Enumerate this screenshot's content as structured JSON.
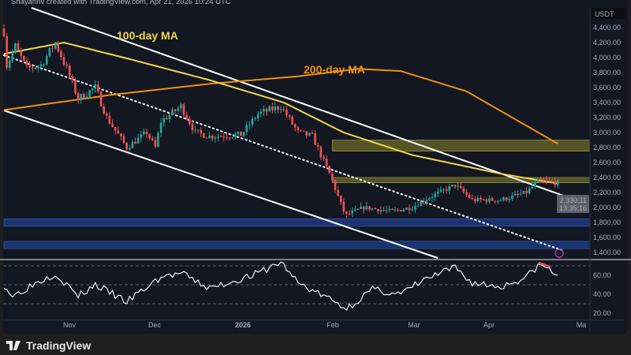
{
  "header": {
    "credit": "Shayannv created with TradingView.com, Apr 21, 2026 10:24 UTC"
  },
  "footer": {
    "brand": "TradingView"
  },
  "colors": {
    "background": "#131722",
    "up": "#26a69a",
    "down": "#ef5350",
    "ma100": "#f0d84a",
    "ma200": "#f0900f",
    "zone_yellow": "#6b6a2a",
    "zone_blue": "#1f3f8a",
    "channel": "#ffffff",
    "rsi": "#ffffff"
  },
  "chart_data": {
    "type": "candlestick",
    "currency": "USDT",
    "y_ticks": [
      "4,400.00",
      "4,200.00",
      "4,000.00",
      "3,800.00",
      "3,600.00",
      "3,400.00",
      "3,200.00",
      "3,000.00",
      "2,800.00",
      "2,600.00",
      "2,400.00",
      "2,200.00",
      "2,000.00",
      "1,800.00",
      "1,600.00",
      "1,400.00"
    ],
    "ylim": [
      1300,
      4550
    ],
    "x_ticks": [
      "Nov",
      "Dec",
      "2026",
      "Feb",
      "Mar",
      "Apr",
      "Ma"
    ],
    "x_range": [
      "2025-10-09",
      "2026-05-03"
    ],
    "last_price": "2,330.11",
    "countdown": "13:35:16",
    "price_keyframes": [
      [
        "2025-10-09",
        4350
      ],
      [
        "2025-10-10",
        3900
      ],
      [
        "2025-10-13",
        4150
      ],
      [
        "2025-10-17",
        3850
      ],
      [
        "2025-10-22",
        3900
      ],
      [
        "2025-10-27",
        4200
      ],
      [
        "2025-10-31",
        3850
      ],
      [
        "2025-11-04",
        3450
      ],
      [
        "2025-11-10",
        3600
      ],
      [
        "2025-11-14",
        3200
      ],
      [
        "2025-11-21",
        2800
      ],
      [
        "2025-11-28",
        3000
      ],
      [
        "2025-12-01",
        2800
      ],
      [
        "2025-12-03",
        3150
      ],
      [
        "2025-12-10",
        3350
      ],
      [
        "2025-12-15",
        3000
      ],
      [
        "2025-12-20",
        2950
      ],
      [
        "2025-12-31",
        2970
      ],
      [
        "2026-01-06",
        3250
      ],
      [
        "2026-01-14",
        3350
      ],
      [
        "2026-01-20",
        3000
      ],
      [
        "2026-01-25",
        2950
      ],
      [
        "2026-01-31",
        2450
      ],
      [
        "2026-02-05",
        1950
      ],
      [
        "2026-02-06",
        1900
      ],
      [
        "2026-02-12",
        2000
      ],
      [
        "2026-02-22",
        1950
      ],
      [
        "2026-03-01",
        2000
      ],
      [
        "2026-03-05",
        2100
      ],
      [
        "2026-03-16",
        2300
      ],
      [
        "2026-03-22",
        2100
      ],
      [
        "2026-04-01",
        2100
      ],
      [
        "2026-04-10",
        2200
      ],
      [
        "2026-04-14",
        2350
      ],
      [
        "2026-04-21",
        2330
      ]
    ],
    "ma100": {
      "label": "100-day MA",
      "keyframes": [
        [
          "2025-10-09",
          4050
        ],
        [
          "2025-10-30",
          4200
        ],
        [
          "2025-11-20",
          4000
        ],
        [
          "2025-12-20",
          3700
        ],
        [
          "2026-01-15",
          3400
        ],
        [
          "2026-02-05",
          3000
        ],
        [
          "2026-03-01",
          2700
        ],
        [
          "2026-04-01",
          2450
        ],
        [
          "2026-04-21",
          2320
        ]
      ]
    },
    "ma200": {
      "label": "200-day MA",
      "keyframes": [
        [
          "2025-10-09",
          3300
        ],
        [
          "2025-11-15",
          3500
        ],
        [
          "2025-12-20",
          3650
        ],
        [
          "2026-01-20",
          3750
        ],
        [
          "2026-02-10",
          3850
        ],
        [
          "2026-02-25",
          3820
        ],
        [
          "2026-03-20",
          3550
        ],
        [
          "2026-04-21",
          2850
        ]
      ]
    },
    "zones": [
      {
        "color": "yellow",
        "from_date": "2026-02-01",
        "range": [
          2750,
          2900
        ]
      },
      {
        "color": "yellow",
        "from_date": "2026-02-01",
        "range": [
          2330,
          2400
        ]
      },
      {
        "color": "blue",
        "from_date": "2025-10-09",
        "range": [
          1750,
          1850
        ]
      },
      {
        "color": "blue",
        "from_date": "2025-10-09",
        "range": [
          1450,
          1550
        ]
      }
    ],
    "rsi": {
      "y_ticks": [
        "60.00",
        "40.00",
        "20.00"
      ],
      "levels": [
        70,
        50,
        30
      ],
      "keyframes": [
        [
          "2025-10-09",
          50
        ],
        [
          "2025-10-12",
          38
        ],
        [
          "2025-10-20",
          52
        ],
        [
          "2025-10-27",
          62
        ],
        [
          "2025-11-04",
          38
        ],
        [
          "2025-11-10",
          50
        ],
        [
          "2025-11-21",
          32
        ],
        [
          "2025-12-03",
          58
        ],
        [
          "2025-12-10",
          62
        ],
        [
          "2025-12-20",
          46
        ],
        [
          "2026-01-06",
          62
        ],
        [
          "2026-01-14",
          74
        ],
        [
          "2026-01-20",
          52
        ],
        [
          "2026-01-31",
          35
        ],
        [
          "2026-02-06",
          25
        ],
        [
          "2026-02-15",
          45
        ],
        [
          "2026-02-25",
          40
        ],
        [
          "2026-03-05",
          55
        ],
        [
          "2026-03-16",
          68
        ],
        [
          "2026-03-22",
          52
        ],
        [
          "2026-04-01",
          48
        ],
        [
          "2026-04-10",
          58
        ],
        [
          "2026-04-14",
          70
        ],
        [
          "2026-04-18",
          68
        ],
        [
          "2026-04-19",
          60
        ],
        [
          "2026-04-21",
          62
        ]
      ]
    }
  }
}
